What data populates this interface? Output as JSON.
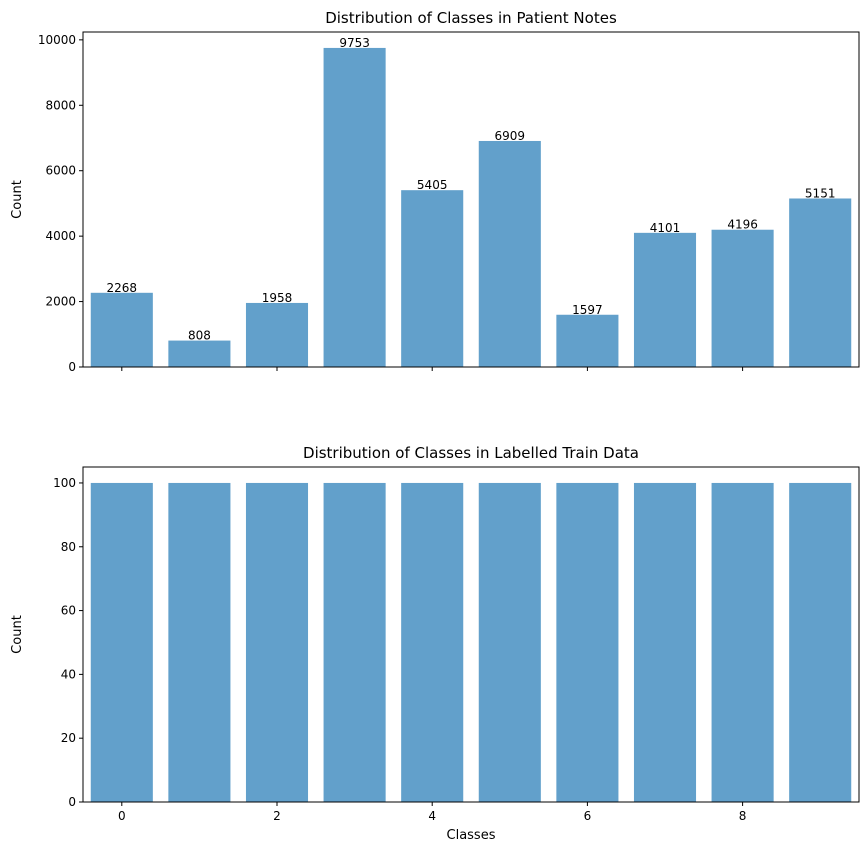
{
  "chart_data": [
    {
      "type": "bar",
      "title": "Distribution of Classes in Patient Notes",
      "xlabel": "",
      "ylabel": "Count",
      "x": [
        0,
        1,
        2,
        3,
        4,
        5,
        6,
        7,
        8,
        9
      ],
      "values": [
        2268,
        808,
        1958,
        9753,
        5405,
        6909,
        1597,
        4101,
        4196,
        5151
      ],
      "data_labels": [
        "2268",
        "808",
        "1958",
        "9753",
        "5405",
        "6909",
        "1597",
        "4101",
        "4196",
        "5151"
      ],
      "ylim": [
        0,
        10240
      ],
      "xlim": [
        -0.5,
        9.5
      ],
      "yticks": [
        0,
        2000,
        4000,
        6000,
        8000,
        10000
      ],
      "xticks": [
        0,
        2,
        4,
        6,
        8
      ],
      "xtick_labels_visible": false,
      "bar_color": "#62a0cb",
      "grid": false
    },
    {
      "type": "bar",
      "title": "Distribution of Classes in Labelled Train Data",
      "xlabel": "Classes",
      "ylabel": "Count",
      "x": [
        0,
        1,
        2,
        3,
        4,
        5,
        6,
        7,
        8,
        9
      ],
      "values": [
        100,
        100,
        100,
        100,
        100,
        100,
        100,
        100,
        100,
        100
      ],
      "ylim": [
        0,
        105
      ],
      "xlim": [
        -0.5,
        9.5
      ],
      "yticks": [
        0,
        20,
        40,
        60,
        80,
        100
      ],
      "xticks": [
        0,
        2,
        4,
        6,
        8
      ],
      "xtick_labels_visible": true,
      "bar_color": "#62a0cb",
      "grid": false
    }
  ]
}
